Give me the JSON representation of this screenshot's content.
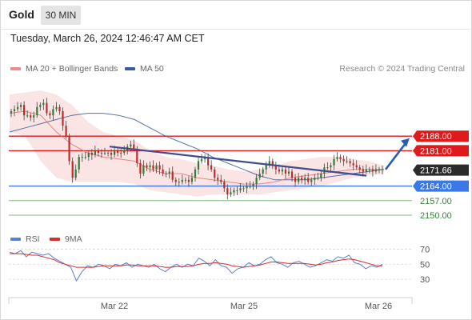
{
  "header": {
    "instrument": "Gold",
    "timeframe": "30 MIN",
    "datetime": "Tuesday, March 26, 2024 12:46:47 AM CET"
  },
  "legend": {
    "ma20_label": "MA 20 + Bollinger Bands",
    "ma50_label": "MA 50",
    "copyright": "Research © 2024 Trading Central"
  },
  "rsi_legend": {
    "rsi_label": "RSI",
    "ma9_label": "9MA"
  },
  "colors": {
    "bull": "#2e7d32",
    "bear": "#c62828",
    "resistance": "#e0191b",
    "support": "#3b78e7",
    "target": "#7cb87c",
    "ma20": "#e57373",
    "ma50": "#3a5a9c",
    "trendline": "#3f4d8c",
    "arrow": "#2a5db0",
    "bollinger_fill": "#fbe1e1",
    "rsi": "#5b7fd6",
    "rsi_ma": "#d32f2f"
  },
  "chart_data": [
    {
      "type": "candlestick",
      "title": "Gold 30 MIN",
      "x_labels": [
        "Mar 22",
        "Mar 25",
        "Mar 26"
      ],
      "ylim": [
        2145,
        2215
      ],
      "last_price": 2171.66,
      "price_levels": [
        {
          "value": 2188.0,
          "label": "2188.00",
          "kind": "resistance"
        },
        {
          "value": 2181.0,
          "label": "2181.00",
          "kind": "resistance"
        },
        {
          "value": 2171.66,
          "label": "2171.66",
          "kind": "last"
        },
        {
          "value": 2164.0,
          "label": "2164.00",
          "kind": "pivot"
        },
        {
          "value": 2157.0,
          "label": "2157.00",
          "kind": "target"
        },
        {
          "value": 2150.0,
          "label": "2150.00",
          "kind": "target"
        }
      ],
      "close_path": [
        2200,
        2201,
        2202,
        2203,
        2198,
        2198,
        2197,
        2198,
        2202,
        2203,
        2204,
        2199,
        2198,
        2201,
        2202,
        2200,
        2193,
        2188,
        2176,
        2168,
        2172,
        2178,
        2178,
        2178,
        2180,
        2179,
        2181,
        2180,
        2180,
        2180,
        2180,
        2179,
        2181,
        2180,
        2180,
        2181,
        2183,
        2184,
        2182,
        2175,
        2170,
        2174,
        2173,
        2174,
        2172,
        2174,
        2172,
        2170,
        2170,
        2171,
        2167,
        2166,
        2166,
        2167,
        2167,
        2166,
        2168,
        2172,
        2176,
        2177,
        2178,
        2174,
        2172,
        2168,
        2167,
        2166,
        2163,
        2160,
        2161,
        2162,
        2162,
        2163,
        2163,
        2164,
        2164,
        2165,
        2168,
        2170,
        2172,
        2174,
        2176,
        2174,
        2172,
        2171,
        2172,
        2170,
        2171,
        2168,
        2166,
        2168,
        2167,
        2168,
        2166,
        2167,
        2168,
        2168,
        2170,
        2173,
        2173,
        2174,
        2177,
        2178,
        2177,
        2176,
        2176,
        2175,
        2174,
        2173,
        2172,
        2171,
        2172,
        2172,
        2171,
        2172,
        2172,
        2172
      ],
      "ma50_path": [
        2190,
        2192,
        2194,
        2196,
        2198,
        2199,
        2199,
        2198,
        2196,
        2192,
        2188,
        2185,
        2182,
        2178,
        2175,
        2172,
        2169,
        2167,
        2167,
        2167,
        2168,
        2169,
        2170,
        2171,
        2172
      ],
      "ma20_path": [
        2199,
        2200,
        2198,
        2190,
        2184,
        2180,
        2178,
        2177,
        2176,
        2172,
        2170,
        2170,
        2168,
        2167,
        2166,
        2165,
        2165,
        2166,
        2168,
        2169,
        2170,
        2171,
        2172,
        2172,
        2172
      ],
      "bollinger_upper": [
        2208,
        2209,
        2210,
        2208,
        2203,
        2195,
        2190,
        2188,
        2186,
        2181,
        2178,
        2177,
        2175,
        2174,
        2172,
        2171,
        2172,
        2174,
        2176,
        2177,
        2178,
        2178,
        2177,
        2176,
        2174
      ],
      "bollinger_lower": [
        2190,
        2188,
        2176,
        2168,
        2166,
        2166,
        2166,
        2166,
        2165,
        2162,
        2161,
        2160,
        2159,
        2160,
        2160,
        2160,
        2160,
        2161,
        2162,
        2163,
        2164,
        2166,
        2168,
        2169,
        2170
      ],
      "trendline": {
        "from": 2183,
        "to": 2169
      },
      "projection": {
        "from": 2172,
        "to": 2187
      }
    },
    {
      "type": "line",
      "title": "RSI",
      "ylim": [
        10,
        80
      ],
      "y_ticks": [
        70,
        50,
        30
      ],
      "series": [
        {
          "name": "RSI",
          "values": [
            66,
            64,
            68,
            60,
            66,
            64,
            62,
            64,
            58,
            54,
            50,
            46,
            28,
            40,
            48,
            46,
            50,
            48,
            44,
            50,
            48,
            52,
            46,
            50,
            48,
            46,
            50,
            44,
            40,
            46,
            50,
            46,
            50,
            48,
            58,
            54,
            48,
            56,
            48,
            46,
            38,
            44,
            46,
            52,
            48,
            50,
            56,
            60,
            52,
            50,
            46,
            52,
            54,
            50,
            46,
            48,
            52,
            56,
            54,
            60,
            58,
            62,
            52,
            50,
            44,
            48,
            46,
            50
          ]
        },
        {
          "name": "9MA",
          "values": [
            64,
            64,
            64,
            63,
            62,
            62,
            60,
            58,
            56,
            52,
            50,
            48,
            46,
            46,
            46,
            46,
            47,
            48,
            48,
            48,
            48,
            49,
            49,
            48,
            48,
            48,
            48,
            47,
            46,
            46,
            47,
            47,
            47,
            48,
            50,
            51,
            51,
            52,
            51,
            50,
            48,
            47,
            46,
            47,
            48,
            49,
            51,
            53,
            53,
            52,
            51,
            51,
            51,
            51,
            50,
            49,
            50,
            52,
            53,
            55,
            56,
            57,
            56,
            54,
            52,
            50,
            48,
            48
          ]
        }
      ]
    }
  ]
}
